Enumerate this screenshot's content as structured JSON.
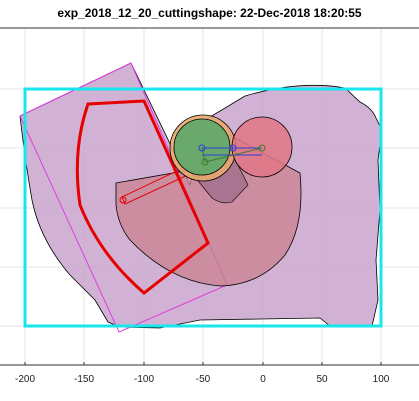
{
  "title": "exp_2018_12_20_cuttingshape: 22-Dec-2018 18:20:55",
  "axis": {
    "x_ticks": [
      "-200",
      "-150",
      "-100",
      "-50",
      "0",
      "50",
      "100"
    ],
    "x_tick_values": [
      -200,
      -150,
      -100,
      -50,
      0,
      50,
      100
    ],
    "grid": true
  },
  "colors": {
    "background_shape": "#c9a4cd",
    "boundary_rect": "#17e6ec",
    "cut_sector": "#e60000",
    "magenta_rect": "#e23be0",
    "tool_circle_green": "#5ca96a",
    "tool_circle_orange": "#e8a96f",
    "tool_circle_red": "#e07785",
    "fan_shape": "#c9808f"
  }
}
